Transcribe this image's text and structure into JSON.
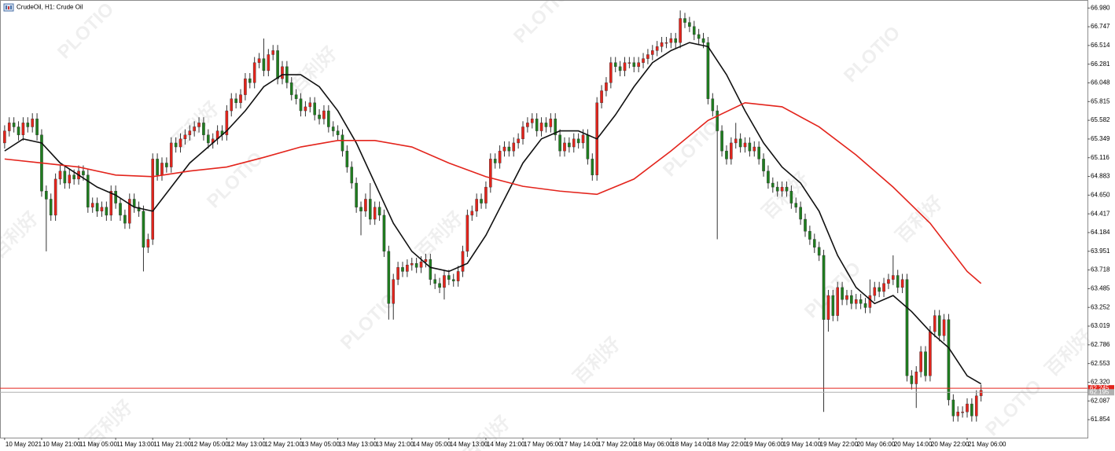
{
  "chart_data": {
    "type": "candlestick",
    "title": "CrudeOil, H1: Crude Oil",
    "up_color": "#e3241c",
    "down_color": "#1f7d1f",
    "wick_color": "#333333",
    "grid": false,
    "open": [
      65.3,
      65.45,
      65.55,
      65.5,
      65.4,
      65.55,
      65.5,
      65.6,
      65.4,
      64.7,
      64.6,
      64.4,
      64.85,
      64.95,
      64.8,
      64.9,
      64.85,
      64.95,
      64.9,
      64.5,
      64.55,
      64.45,
      64.5,
      64.4,
      64.7,
      64.55,
      64.4,
      64.3,
      64.6,
      64.5,
      64.45,
      64.0,
      64.1,
      65.1,
      64.9,
      65.05,
      65.0,
      65.3,
      65.25,
      65.35,
      65.4,
      65.45,
      65.5,
      65.55,
      65.4,
      65.3,
      65.35,
      65.45,
      65.4,
      65.7,
      65.85,
      65.8,
      65.9,
      66.1,
      66.05,
      66.3,
      66.35,
      66.2,
      66.4,
      66.45,
      66.1,
      66.25,
      66.05,
      65.9,
      65.85,
      65.7,
      65.75,
      65.8,
      65.65,
      65.6,
      65.7,
      65.5,
      65.45,
      65.4,
      65.2,
      65.0,
      64.8,
      64.5,
      64.45,
      64.6,
      64.35,
      64.5,
      64.4,
      63.95,
      63.3,
      63.6,
      63.75,
      63.7,
      63.78,
      63.8,
      63.75,
      63.82,
      63.85,
      63.6,
      63.55,
      63.5,
      63.65,
      63.6,
      63.58,
      63.7,
      63.95,
      64.4,
      64.45,
      64.6,
      64.55,
      64.75,
      65.1,
      65.05,
      65.2,
      65.25,
      65.2,
      65.3,
      65.35,
      65.5,
      65.55,
      65.6,
      65.45,
      65.55,
      65.5,
      65.6,
      65.4,
      65.2,
      65.3,
      65.25,
      65.35,
      65.3,
      65.4,
      65.1,
      64.9,
      65.8,
      65.95,
      66.05,
      66.3,
      66.25,
      66.2,
      66.3,
      66.3,
      66.25,
      66.3,
      66.35,
      66.4,
      66.45,
      66.5,
      66.55,
      66.55,
      66.6,
      66.55,
      66.85,
      66.8,
      66.75,
      66.65,
      66.6,
      66.55,
      65.85,
      65.7,
      65.45,
      65.2,
      65.1,
      65.3,
      65.35,
      65.25,
      65.3,
      65.2,
      65.25,
      65.1,
      64.95,
      64.8,
      64.75,
      64.7,
      64.75,
      64.7,
      64.55,
      64.5,
      64.35,
      64.2,
      64.1,
      64.0,
      63.9,
      63.1,
      63.4,
      63.15,
      63.5,
      63.35,
      63.4,
      63.3,
      63.35,
      63.3,
      63.25,
      63.4,
      63.5,
      63.45,
      63.55,
      63.6,
      63.65,
      63.5,
      63.6,
      62.4,
      62.3,
      62.45,
      62.7,
      62.4,
      62.95,
      63.15,
      62.9,
      63.1,
      62.1,
      61.9,
      61.95,
      61.95,
      62.05,
      61.9,
      62.15
    ],
    "high": [
      65.52,
      65.62,
      65.62,
      65.57,
      65.62,
      65.62,
      65.67,
      65.67,
      65.47,
      64.77,
      64.67,
      64.92,
      65.02,
      65.02,
      64.97,
      64.97,
      65.02,
      65.02,
      64.97,
      64.62,
      64.62,
      64.57,
      64.57,
      64.77,
      64.77,
      64.62,
      64.47,
      64.67,
      64.67,
      64.57,
      64.52,
      64.17,
      65.17,
      65.17,
      65.12,
      65.12,
      65.37,
      65.37,
      65.42,
      65.47,
      65.52,
      65.57,
      65.62,
      65.62,
      65.47,
      65.42,
      65.52,
      65.52,
      65.77,
      65.92,
      65.92,
      65.97,
      66.17,
      66.17,
      66.37,
      66.42,
      66.6,
      66.47,
      66.52,
      66.52,
      66.32,
      66.32,
      66.12,
      65.97,
      65.92,
      65.82,
      65.87,
      65.87,
      65.72,
      65.77,
      65.77,
      65.57,
      65.52,
      65.47,
      65.27,
      65.07,
      64.87,
      64.57,
      64.67,
      64.8,
      64.57,
      64.57,
      64.47,
      64.02,
      63.67,
      63.82,
      63.82,
      63.85,
      63.87,
      63.87,
      63.89,
      63.92,
      63.92,
      63.67,
      63.62,
      63.72,
      63.72,
      63.67,
      63.77,
      64.02,
      64.47,
      64.52,
      64.67,
      64.67,
      64.82,
      65.17,
      65.17,
      65.27,
      65.32,
      65.32,
      65.37,
      65.42,
      65.57,
      65.62,
      65.67,
      65.67,
      65.62,
      65.62,
      65.67,
      65.67,
      65.47,
      65.37,
      65.37,
      65.42,
      65.42,
      65.47,
      65.47,
      65.17,
      65.87,
      66.02,
      66.12,
      66.37,
      66.37,
      66.32,
      66.37,
      66.37,
      66.37,
      66.37,
      66.42,
      66.47,
      66.52,
      66.57,
      66.62,
      66.62,
      66.67,
      66.67,
      66.95,
      66.92,
      66.87,
      66.82,
      66.72,
      66.67,
      66.62,
      65.92,
      65.77,
      65.52,
      65.27,
      65.37,
      65.55,
      65.42,
      65.37,
      65.37,
      65.32,
      65.32,
      65.17,
      65.02,
      64.87,
      64.82,
      64.82,
      64.82,
      64.77,
      64.62,
      64.57,
      64.42,
      64.27,
      64.17,
      64.07,
      63.97,
      63.47,
      63.47,
      63.57,
      63.57,
      63.47,
      63.47,
      63.42,
      63.42,
      63.37,
      63.6,
      63.57,
      63.57,
      63.62,
      63.67,
      63.9,
      63.72,
      63.67,
      63.67,
      62.47,
      62.52,
      62.77,
      62.77,
      63.02,
      63.22,
      63.22,
      63.17,
      63.17,
      62.17,
      62.02,
      62.02,
      62.12,
      62.12,
      62.22,
      62.29
    ],
    "low": [
      65.23,
      65.38,
      65.43,
      65.33,
      65.33,
      65.43,
      65.43,
      65.33,
      64.63,
      63.95,
      64.33,
      64.33,
      64.78,
      64.73,
      64.73,
      64.78,
      64.78,
      64.83,
      64.43,
      64.43,
      64.38,
      64.38,
      64.33,
      64.33,
      64.48,
      64.33,
      64.23,
      64.23,
      64.43,
      64.38,
      63.7,
      63.93,
      64.03,
      64.83,
      64.83,
      64.93,
      64.93,
      65.18,
      65.18,
      65.28,
      65.33,
      65.38,
      65.43,
      65.33,
      65.23,
      65.23,
      65.28,
      65.33,
      65.33,
      65.63,
      65.73,
      65.73,
      65.83,
      65.98,
      65.98,
      66.23,
      66.13,
      66.13,
      66.33,
      66.03,
      66.03,
      65.98,
      65.83,
      65.78,
      65.63,
      65.63,
      65.68,
      65.58,
      65.53,
      65.53,
      65.43,
      65.38,
      65.33,
      65.13,
      64.93,
      64.73,
      64.43,
      64.15,
      64.38,
      64.28,
      64.28,
      64.33,
      63.88,
      63.1,
      63.1,
      63.53,
      63.63,
      63.63,
      63.71,
      63.68,
      63.68,
      63.75,
      63.53,
      63.48,
      63.43,
      63.35,
      63.53,
      63.51,
      63.51,
      63.63,
      63.88,
      64.33,
      64.38,
      64.48,
      64.48,
      64.68,
      64.98,
      64.98,
      65.13,
      65.13,
      65.13,
      65.23,
      65.28,
      65.43,
      65.48,
      65.38,
      65.38,
      65.43,
      65.43,
      65.33,
      65.13,
      65.13,
      65.18,
      65.18,
      65.23,
      65.23,
      65.03,
      64.83,
      64.83,
      65.73,
      65.88,
      65.98,
      66.18,
      66.13,
      66.13,
      66.23,
      66.18,
      66.18,
      66.23,
      66.28,
      66.33,
      66.38,
      66.43,
      66.48,
      66.48,
      66.48,
      66.48,
      66.73,
      66.68,
      66.58,
      66.53,
      66.48,
      65.78,
      65.63,
      64.1,
      65.13,
      65.03,
      65.03,
      65.23,
      65.18,
      65.18,
      65.13,
      65.13,
      65.03,
      64.88,
      64.73,
      64.68,
      64.63,
      64.63,
      64.63,
      64.48,
      64.43,
      64.28,
      64.13,
      64.03,
      63.93,
      63.83,
      61.95,
      62.95,
      63.08,
      63.08,
      63.28,
      63.28,
      63.23,
      63.23,
      63.23,
      63.18,
      63.18,
      63.33,
      63.38,
      63.38,
      63.48,
      63.53,
      63.43,
      63.43,
      62.33,
      62.23,
      62.0,
      62.38,
      62.33,
      62.33,
      62.88,
      62.83,
      62.83,
      62.03,
      61.83,
      61.83,
      61.88,
      61.88,
      61.83,
      61.83,
      62.08
    ],
    "close": [
      65.45,
      65.55,
      65.5,
      65.4,
      65.55,
      65.5,
      65.6,
      65.4,
      64.7,
      64.6,
      64.4,
      64.85,
      64.95,
      64.8,
      64.9,
      64.85,
      64.95,
      64.9,
      64.5,
      64.55,
      64.45,
      64.5,
      64.4,
      64.7,
      64.55,
      64.4,
      64.3,
      64.6,
      64.5,
      64.45,
      64.0,
      64.1,
      65.1,
      64.9,
      65.05,
      65.0,
      65.3,
      65.25,
      65.35,
      65.4,
      65.45,
      65.5,
      65.55,
      65.4,
      65.3,
      65.35,
      65.45,
      65.4,
      65.7,
      65.85,
      65.8,
      65.9,
      66.1,
      66.05,
      66.3,
      66.35,
      66.2,
      66.4,
      66.45,
      66.1,
      66.25,
      66.05,
      65.9,
      65.85,
      65.7,
      65.75,
      65.8,
      65.65,
      65.6,
      65.7,
      65.5,
      65.45,
      65.4,
      65.2,
      65.0,
      64.8,
      64.5,
      64.45,
      64.6,
      64.35,
      64.5,
      64.4,
      63.95,
      63.3,
      63.6,
      63.75,
      63.7,
      63.78,
      63.8,
      63.75,
      63.82,
      63.85,
      63.6,
      63.55,
      63.5,
      63.65,
      63.6,
      63.58,
      63.7,
      63.95,
      64.4,
      64.45,
      64.6,
      64.55,
      64.75,
      65.1,
      65.05,
      65.2,
      65.25,
      65.2,
      65.3,
      65.35,
      65.5,
      65.55,
      65.6,
      65.45,
      65.55,
      65.5,
      65.6,
      65.4,
      65.2,
      65.3,
      65.25,
      65.35,
      65.3,
      65.4,
      65.1,
      64.9,
      65.8,
      65.95,
      66.05,
      66.3,
      66.25,
      66.2,
      66.3,
      66.3,
      66.25,
      66.3,
      66.35,
      66.4,
      66.45,
      66.5,
      66.55,
      66.55,
      66.6,
      66.55,
      66.85,
      66.8,
      66.75,
      66.65,
      66.6,
      66.55,
      65.85,
      65.7,
      65.45,
      65.2,
      65.1,
      65.3,
      65.35,
      65.25,
      65.3,
      65.2,
      65.25,
      65.1,
      64.95,
      64.8,
      64.75,
      64.7,
      64.75,
      64.7,
      64.55,
      64.5,
      64.35,
      64.2,
      64.1,
      64.0,
      63.9,
      63.1,
      63.4,
      63.15,
      63.5,
      63.35,
      63.4,
      63.3,
      63.35,
      63.3,
      63.25,
      63.4,
      63.5,
      63.45,
      63.55,
      63.6,
      63.65,
      63.5,
      63.6,
      62.4,
      62.3,
      62.45,
      62.7,
      62.4,
      62.95,
      63.15,
      62.9,
      63.1,
      62.1,
      61.9,
      61.95,
      61.95,
      62.05,
      61.9,
      62.15,
      62.22
    ],
    "lines": [
      {
        "color": "#111111",
        "x": [
          0,
          4,
          8,
          12,
          16,
          20,
          24,
          28,
          32,
          36,
          40,
          44,
          48,
          52,
          56,
          60,
          64,
          68,
          72,
          76,
          80,
          84,
          88,
          92,
          96,
          100,
          104,
          108,
          112,
          116,
          120,
          124,
          128,
          132,
          136,
          140,
          144,
          148,
          152,
          156,
          160,
          164,
          168,
          172,
          176,
          180,
          184,
          188,
          192,
          196,
          200,
          204,
          208,
          211
        ],
        "values": [
          65.2,
          65.35,
          65.3,
          65.05,
          64.9,
          64.75,
          64.65,
          64.5,
          64.45,
          64.75,
          65.05,
          65.25,
          65.45,
          65.7,
          66.0,
          66.15,
          66.15,
          66.0,
          65.7,
          65.3,
          64.8,
          64.3,
          63.95,
          63.75,
          63.7,
          63.8,
          64.15,
          64.6,
          65.05,
          65.35,
          65.45,
          65.45,
          65.35,
          65.65,
          66.0,
          66.3,
          66.45,
          66.55,
          66.5,
          66.15,
          65.7,
          65.3,
          65.0,
          64.8,
          64.45,
          63.9,
          63.5,
          63.3,
          63.4,
          63.2,
          62.95,
          62.75,
          62.4,
          62.3
        ]
      },
      {
        "color": "#e3241c",
        "x": [
          0,
          8,
          16,
          24,
          32,
          40,
          48,
          56,
          64,
          72,
          80,
          88,
          96,
          104,
          112,
          120,
          128,
          136,
          144,
          152,
          160,
          168,
          176,
          184,
          192,
          200,
          208,
          211
        ],
        "values": [
          65.1,
          65.05,
          65.0,
          64.9,
          64.88,
          64.95,
          65.0,
          65.12,
          65.25,
          65.33,
          65.33,
          65.25,
          65.05,
          64.88,
          64.76,
          64.7,
          64.66,
          64.85,
          65.2,
          65.58,
          65.8,
          65.75,
          65.5,
          65.15,
          64.75,
          64.3,
          63.7,
          63.55
        ]
      }
    ],
    "price_lines": [
      {
        "value": 62.245,
        "color": "#e3241c"
      },
      {
        "value": 62.195,
        "color": "#b0b0b0"
      }
    ],
    "xlim": [
      -1,
      234
    ],
    "ylim": [
      61.63,
      67.08
    ],
    "yticks": [
      {
        "value": 66.98,
        "label": "66.980"
      },
      66.747,
      66.514,
      66.281,
      66.048,
      65.815,
      65.582,
      65.349,
      65.116,
      64.883,
      {
        "value": 64.65,
        "label": "64.650"
      },
      64.417,
      64.184,
      63.951,
      63.718,
      63.485,
      63.252,
      63.019,
      62.786,
      62.553,
      {
        "value": 62.32,
        "label": "62.320"
      },
      62.087,
      61.854
    ],
    "xticks": [
      {
        "value": 0,
        "label": "10 May 2021"
      },
      {
        "value": 8,
        "label": "10 May 21:00"
      },
      {
        "value": 16,
        "label": "11 May 05:00"
      },
      {
        "value": 24,
        "label": "11 May 13:00"
      },
      {
        "value": 32,
        "label": "11 May 21:00"
      },
      {
        "value": 40,
        "label": "12 May 05:00"
      },
      {
        "value": 48,
        "label": "12 May 13:00"
      },
      {
        "value": 56,
        "label": "12 May 21:00"
      },
      {
        "value": 64,
        "label": "13 May 05:00"
      },
      {
        "value": 72,
        "label": "13 May 13:00"
      },
      {
        "value": 80,
        "label": "13 May 21:00"
      },
      {
        "value": 88,
        "label": "14 May 05:00"
      },
      {
        "value": 96,
        "label": "14 May 13:00"
      },
      {
        "value": 104,
        "label": "14 May 21:00"
      },
      {
        "value": 112,
        "label": "17 May 06:00"
      },
      {
        "value": 120,
        "label": "17 May 14:00"
      },
      {
        "value": 128,
        "label": "17 May 22:00"
      },
      {
        "value": 136,
        "label": "18 May 06:00"
      },
      {
        "value": 144,
        "label": "18 May 14:00"
      },
      {
        "value": 152,
        "label": "18 May 22:00"
      },
      {
        "value": 160,
        "label": "19 May 06:00"
      },
      {
        "value": 168,
        "label": "19 May 14:00"
      },
      {
        "value": 176,
        "label": "19 May 22:00"
      },
      {
        "value": 184,
        "label": "20 May 06:00"
      },
      {
        "value": 192,
        "label": "20 May 14:00"
      },
      {
        "value": 200,
        "label": "20 May 22:00"
      },
      {
        "value": 208,
        "label": "21 May 06:00"
      }
    ],
    "watermarks": [
      "PLOTIO",
      "百利好"
    ]
  }
}
